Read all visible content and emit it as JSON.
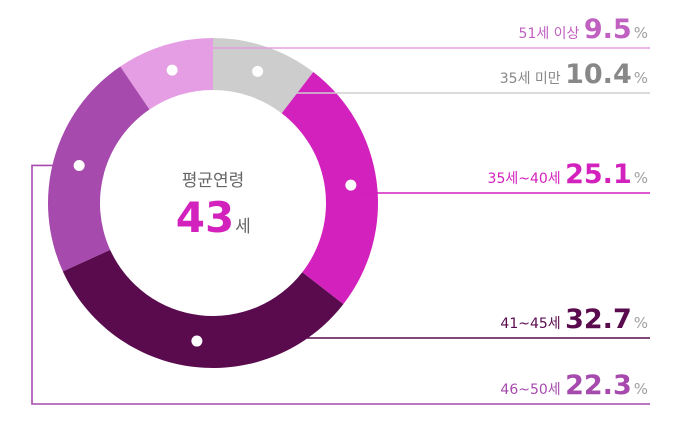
{
  "chart_data": {
    "type": "pie",
    "title": "",
    "center": {
      "title": "평균연령",
      "value": "43",
      "unit": "세",
      "value_color": "#d321bd"
    },
    "unit": "%",
    "slices": [
      {
        "label": "51세 이상",
        "value": 9.5,
        "value_text": "9.5",
        "color": "#e59de3",
        "label_color": "#c060c0",
        "line_color": "#e59de3"
      },
      {
        "label": "35세 미만",
        "value": 10.4,
        "value_text": "10.4",
        "color": "#cdcdcd",
        "label_color": "#888888",
        "line_color": "#cdcdcd"
      },
      {
        "label": "35세~40세",
        "value": 25.1,
        "value_text": "25.1",
        "color": "#d321bd",
        "label_color": "#d321bd",
        "line_color": "#d321bd"
      },
      {
        "label": "41~45세",
        "value": 32.7,
        "value_text": "32.7",
        "color": "#5a0b4e",
        "label_color": "#5a0b4e",
        "line_color": "#5a0b4e"
      },
      {
        "label": "46~50세",
        "value": 22.3,
        "value_text": "22.3",
        "color": "#a64aad",
        "label_color": "#a64aad",
        "line_color": "#a64aad"
      }
    ]
  }
}
